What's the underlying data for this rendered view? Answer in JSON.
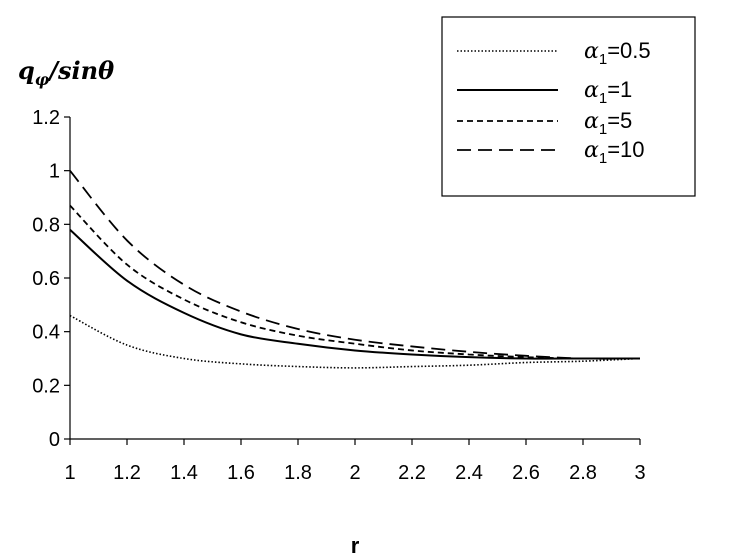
{
  "chart_data": {
    "type": "line",
    "title": "",
    "ylabel_parts": {
      "base": "q",
      "sub": "φ",
      "rest": "/sinθ"
    },
    "xlabel": "r",
    "xlim": [
      1,
      3
    ],
    "ylim": [
      0,
      1.2
    ],
    "x_ticks": [
      "1",
      "1.2",
      "1.4",
      "1.6",
      "1.8",
      "2",
      "2.2",
      "2.4",
      "2.6",
      "2.8",
      "3"
    ],
    "y_ticks": [
      "0",
      "0.2",
      "0.4",
      "0.6",
      "0.8",
      "1",
      "1.2"
    ],
    "grid": false,
    "legend_position": "top-right",
    "x": [
      1,
      1.2,
      1.4,
      1.6,
      1.8,
      2,
      2.2,
      2.4,
      2.6,
      2.8,
      3
    ],
    "series": [
      {
        "name_sym": "α",
        "name_sub": "1",
        "name_rest": "=0.5",
        "style": "dotted",
        "values": [
          0.46,
          0.35,
          0.3,
          0.28,
          0.27,
          0.265,
          0.27,
          0.275,
          0.285,
          0.29,
          0.3
        ]
      },
      {
        "name_sym": "α",
        "name_sub": "1",
        "name_rest": "=1",
        "style": "solid",
        "values": [
          0.78,
          0.59,
          0.47,
          0.39,
          0.355,
          0.33,
          0.315,
          0.305,
          0.3,
          0.3,
          0.3
        ]
      },
      {
        "name_sym": "α",
        "name_sub": "1",
        "name_rest": "=5",
        "style": "short-dash",
        "values": [
          0.87,
          0.65,
          0.52,
          0.435,
          0.385,
          0.355,
          0.33,
          0.315,
          0.305,
          0.3,
          0.3
        ]
      },
      {
        "name_sym": "α",
        "name_sub": "1",
        "name_rest": "=10",
        "style": "long-dash",
        "values": [
          1.0,
          0.74,
          0.575,
          0.475,
          0.41,
          0.37,
          0.345,
          0.325,
          0.31,
          0.3,
          0.3
        ]
      }
    ]
  }
}
